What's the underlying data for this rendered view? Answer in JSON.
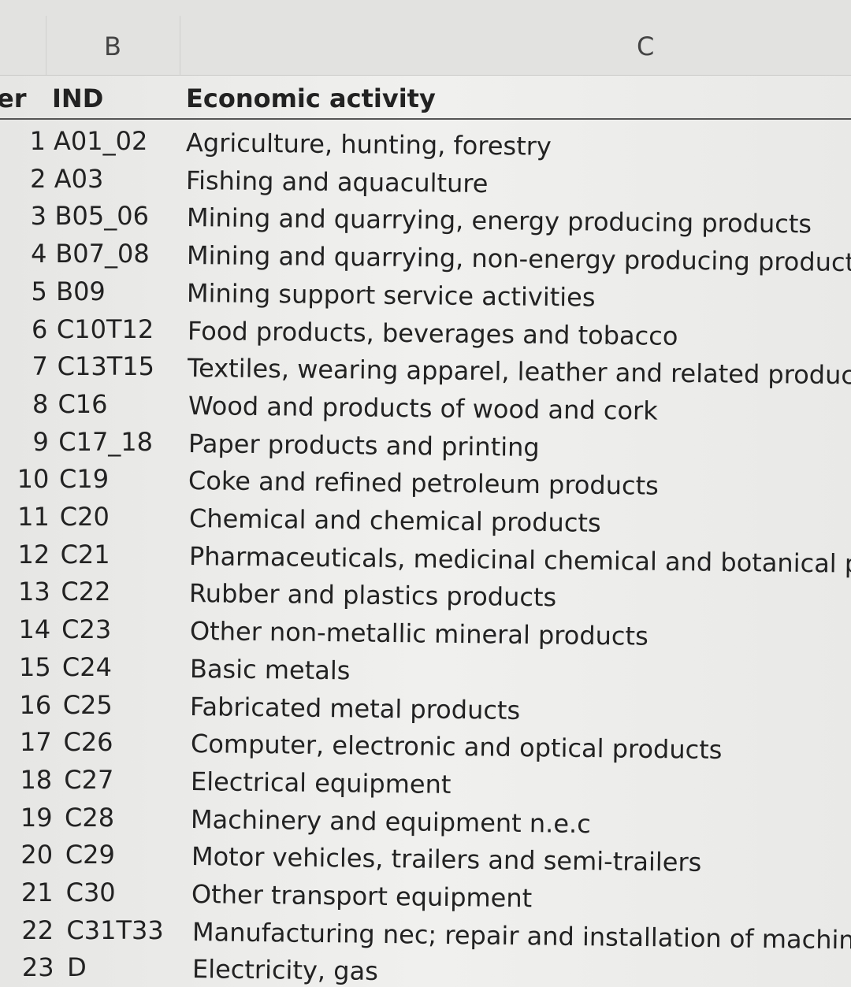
{
  "column_headers": [
    "B",
    "C"
  ],
  "table": {
    "header": [
      "er",
      "IND",
      "Economic activity"
    ],
    "rows": [
      [
        1,
        "A01_02",
        "Agriculture, hunting, forestry"
      ],
      [
        2,
        "A03",
        "Fishing and aquaculture"
      ],
      [
        3,
        "B05_06",
        "Mining and quarrying, energy producing products"
      ],
      [
        4,
        "B07_08",
        "Mining and quarrying, non-energy producing products"
      ],
      [
        5,
        "B09",
        "Mining support service activities"
      ],
      [
        6,
        "C10T12",
        "Food products, beverages and tobacco"
      ],
      [
        7,
        "C13T15",
        "Textiles, wearing apparel, leather and related products"
      ],
      [
        8,
        "C16",
        "Wood and products of wood and cork"
      ],
      [
        9,
        "C17_18",
        "Paper products and printing"
      ],
      [
        10,
        "C19",
        "Coke and refined petroleum products"
      ],
      [
        11,
        "C20",
        "Chemical and chemical products"
      ],
      [
        12,
        "C21",
        "Pharmaceuticals, medicinal chemical and botanical proc"
      ],
      [
        13,
        "C22",
        "Rubber and plastics products"
      ],
      [
        14,
        "C23",
        "Other non-metallic mineral products"
      ],
      [
        15,
        "C24",
        "Basic metals"
      ],
      [
        16,
        "C25",
        "Fabricated metal products"
      ],
      [
        17,
        "C26",
        "Computer, electronic and optical products"
      ],
      [
        18,
        "C27",
        "Electrical equipment"
      ],
      [
        19,
        "C28",
        "Machinery and equipment n.e.c"
      ],
      [
        20,
        "C29",
        "Motor vehicles, trailers and semi-trailers"
      ],
      [
        21,
        "C30",
        "Other transport equipment"
      ],
      [
        22,
        "C31T33",
        "Manufacturing nec; repair and installation of machinery ar"
      ],
      [
        23,
        "D",
        "Electricity, gas"
      ]
    ]
  }
}
